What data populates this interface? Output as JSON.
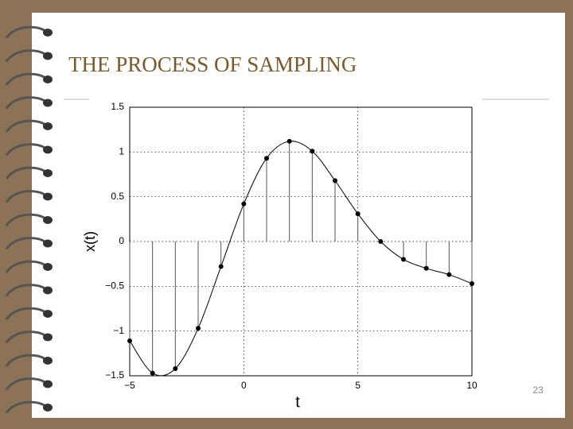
{
  "slide": {
    "title": "THE PROCESS OF SAMPLING",
    "page_number": "23"
  },
  "chart_data": {
    "type": "stem",
    "xlabel": "t",
    "ylabel": "x(t)",
    "x": [
      -5,
      -4,
      -3,
      -2,
      -1,
      0,
      1,
      2,
      3,
      4,
      5,
      6,
      7,
      8,
      9,
      10
    ],
    "values": [
      -1.11,
      -1.47,
      -1.42,
      -0.97,
      -0.28,
      0.42,
      0.93,
      1.12,
      1.01,
      0.68,
      0.31,
      0.0,
      -0.2,
      -0.3,
      -0.37,
      -0.47
    ],
    "color": "#000000",
    "xlim": [
      -5,
      10
    ],
    "xticks": [
      {
        "value": -5,
        "label": "−5"
      },
      0,
      5,
      10
    ],
    "ylim": [
      -1.5,
      1.5
    ],
    "yticks": [
      {
        "value": -1.5,
        "label": "−1.5"
      },
      {
        "value": -1,
        "label": "−1"
      },
      {
        "value": -0.5,
        "label": "−0.5"
      },
      0,
      0.5,
      1,
      1.5
    ],
    "grid": true
  }
}
